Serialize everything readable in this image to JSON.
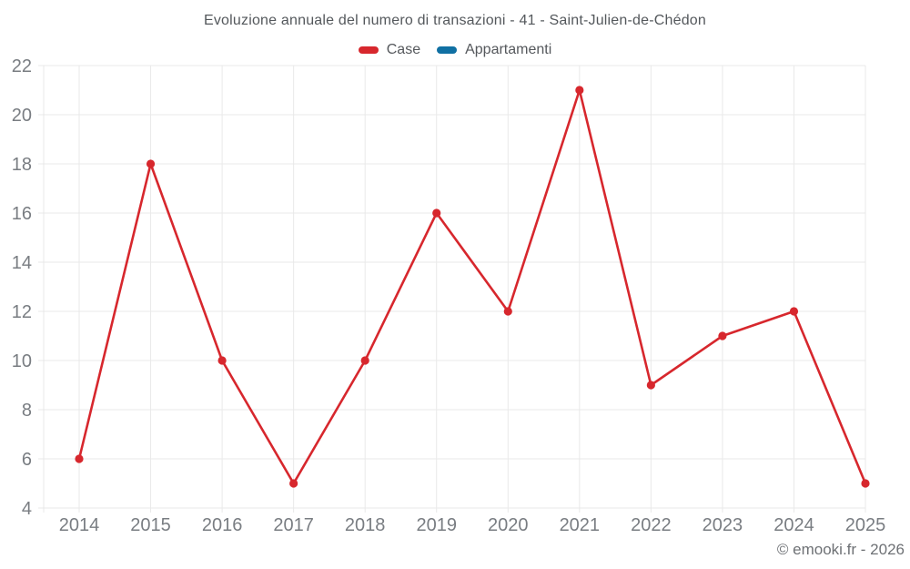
{
  "chart_data": {
    "type": "line",
    "title": "Evoluzione annuale del numero di transazioni - 41 - Saint-Julien-de-Chédon",
    "categories": [
      "2014",
      "2015",
      "2016",
      "2017",
      "2018",
      "2019",
      "2020",
      "2021",
      "2022",
      "2023",
      "2024",
      "2025"
    ],
    "series": [
      {
        "name": "Case",
        "color": "#d7272d",
        "values": [
          6,
          18,
          10,
          5,
          10,
          16,
          12,
          21,
          9,
          11,
          12,
          5
        ]
      },
      {
        "name": "Appartamenti",
        "color": "#1070a3",
        "values": []
      }
    ],
    "xlabel": "",
    "ylabel": "",
    "ylim": [
      4,
      22
    ],
    "ytick_step": 2,
    "yticks": [
      4,
      6,
      8,
      10,
      12,
      14,
      16,
      18,
      20,
      22
    ],
    "grid": true,
    "legend_position": "top"
  },
  "footer": {
    "copyright": "© emooki.fr - 2026"
  },
  "style": {
    "grid_color": "#e9e9e9",
    "axis_label_color": "#797d82",
    "marker_radius": 4.6,
    "line_width": 2.6
  }
}
